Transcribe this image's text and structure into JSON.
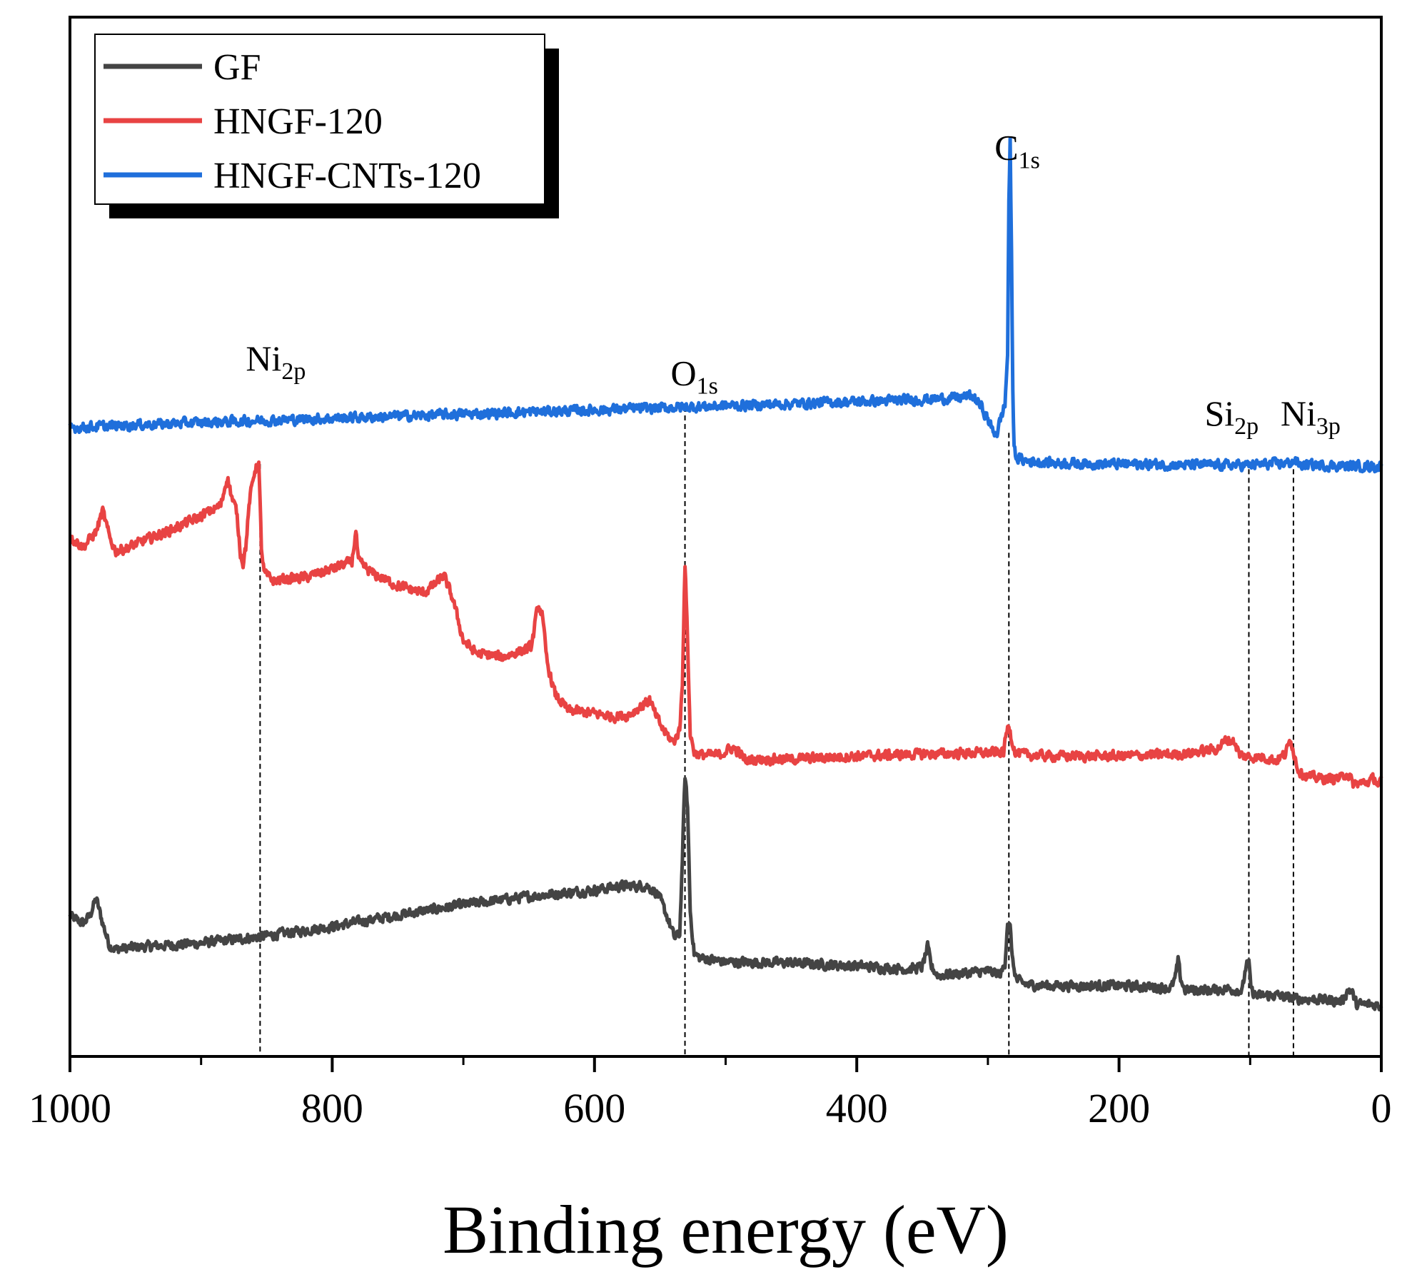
{
  "chart_data": {
    "type": "line",
    "title": "",
    "xlabel": "Binding energy (eV)",
    "ylabel": "",
    "xlim": [
      1000,
      0
    ],
    "x_reversed": true,
    "ylim": [
      0,
      100
    ],
    "y_ticks_shown": false,
    "grid": false,
    "legend": {
      "position": "top-left",
      "entries": [
        "GF",
        "HNGF-120",
        "HNGF-CNTs-120"
      ]
    },
    "x_ticks": [
      1000,
      800,
      600,
      400,
      200,
      0
    ],
    "x_tick_labels": [
      "1000",
      "800",
      "600",
      "400",
      "200",
      "0"
    ],
    "series": [
      {
        "name": "GF",
        "color": "#444444",
        "points": [
          [
            1000,
            13.5
          ],
          [
            990,
            12.8
          ],
          [
            985,
            13.5
          ],
          [
            980,
            15.2
          ],
          [
            975,
            12.8
          ],
          [
            970,
            10.7
          ],
          [
            965,
            10.3
          ],
          [
            950,
            10.5
          ],
          [
            900,
            10.9
          ],
          [
            850,
            11.6
          ],
          [
            800,
            12.5
          ],
          [
            750,
            13.6
          ],
          [
            700,
            14.6
          ],
          [
            650,
            15.4
          ],
          [
            600,
            16.0
          ],
          [
            580,
            16.4
          ],
          [
            560,
            16.4
          ],
          [
            552,
            15.7
          ],
          [
            545,
            13.6
          ],
          [
            539,
            11.4
          ],
          [
            535,
            11.8
          ],
          [
            533,
            19.0
          ],
          [
            531,
            27.0
          ],
          [
            529,
            24.0
          ],
          [
            527,
            14.0
          ],
          [
            524,
            9.9
          ],
          [
            520,
            9.5
          ],
          [
            500,
            9.1
          ],
          [
            450,
            9.0
          ],
          [
            400,
            8.7
          ],
          [
            360,
            8.4
          ],
          [
            350,
            8.6
          ],
          [
            346,
            10.5
          ],
          [
            343,
            8.6
          ],
          [
            338,
            7.8
          ],
          [
            320,
            8.0
          ],
          [
            300,
            8.2
          ],
          [
            290,
            7.9
          ],
          [
            287,
            9.0
          ],
          [
            285,
            13.0
          ],
          [
            283,
            12.3
          ],
          [
            281,
            9.0
          ],
          [
            278,
            7.3
          ],
          [
            270,
            6.9
          ],
          [
            250,
            6.8
          ],
          [
            200,
            6.8
          ],
          [
            160,
            6.6
          ],
          [
            157,
            7.6
          ],
          [
            155,
            9.2
          ],
          [
            153,
            7.5
          ],
          [
            150,
            6.4
          ],
          [
            130,
            6.4
          ],
          [
            115,
            6.5
          ],
          [
            106,
            6.3
          ],
          [
            103,
            8.9
          ],
          [
            101,
            8.8
          ],
          [
            99,
            6.3
          ],
          [
            95,
            5.8
          ],
          [
            80,
            5.9
          ],
          [
            70,
            5.6
          ],
          [
            50,
            5.5
          ],
          [
            30,
            5.3
          ],
          [
            25,
            6.5
          ],
          [
            22,
            6.1
          ],
          [
            19,
            5.0
          ],
          [
            10,
            5.0
          ],
          [
            0,
            4.9
          ]
        ]
      },
      {
        "name": "HNGF-120",
        "color": "#e84343",
        "points": [
          [
            1000,
            50.0
          ],
          [
            990,
            49.0
          ],
          [
            980,
            50.5
          ],
          [
            975,
            52.5
          ],
          [
            970,
            50.0
          ],
          [
            965,
            48.6
          ],
          [
            955,
            49.0
          ],
          [
            940,
            49.8
          ],
          [
            920,
            50.8
          ],
          [
            900,
            52.0
          ],
          [
            885,
            53.0
          ],
          [
            880,
            55.8
          ],
          [
            876,
            53.5
          ],
          [
            873,
            52.5
          ],
          [
            870,
            48.5
          ],
          [
            868,
            47.5
          ],
          [
            866,
            49.0
          ],
          [
            863,
            53.5
          ],
          [
            859,
            56.5
          ],
          [
            856,
            57.0
          ],
          [
            854,
            49.0
          ],
          [
            852,
            46.5
          ],
          [
            845,
            45.8
          ],
          [
            820,
            46.1
          ],
          [
            800,
            46.9
          ],
          [
            785,
            47.6
          ],
          [
            782,
            50.5
          ],
          [
            780,
            47.6
          ],
          [
            770,
            46.5
          ],
          [
            750,
            45.3
          ],
          [
            730,
            44.6
          ],
          [
            722,
            45.4
          ],
          [
            715,
            46.3
          ],
          [
            708,
            44.0
          ],
          [
            700,
            40.0
          ],
          [
            690,
            38.8
          ],
          [
            670,
            38.4
          ],
          [
            655,
            39.1
          ],
          [
            648,
            39.4
          ],
          [
            643,
            43.5
          ],
          [
            640,
            42.5
          ],
          [
            636,
            37.8
          ],
          [
            630,
            34.8
          ],
          [
            620,
            33.3
          ],
          [
            600,
            33.0
          ],
          [
            585,
            32.7
          ],
          [
            575,
            32.8
          ],
          [
            563,
            33.8
          ],
          [
            558,
            34.3
          ],
          [
            554,
            33.0
          ],
          [
            548,
            31.5
          ],
          [
            540,
            30.2
          ],
          [
            535,
            31.4
          ],
          [
            533,
            36.0
          ],
          [
            531,
            47.5
          ],
          [
            529,
            40.0
          ],
          [
            527,
            31.0
          ],
          [
            524,
            29.3
          ],
          [
            520,
            29.0
          ],
          [
            505,
            29.0
          ],
          [
            495,
            29.7
          ],
          [
            490,
            29.3
          ],
          [
            485,
            28.5
          ],
          [
            470,
            28.6
          ],
          [
            450,
            28.6
          ],
          [
            400,
            28.9
          ],
          [
            350,
            29.1
          ],
          [
            300,
            29.2
          ],
          [
            288,
            29.3
          ],
          [
            286,
            31.0
          ],
          [
            284,
            32.0
          ],
          [
            282,
            30.6
          ],
          [
            279,
            29.2
          ],
          [
            270,
            29.0
          ],
          [
            250,
            28.9
          ],
          [
            200,
            28.9
          ],
          [
            150,
            29.1
          ],
          [
            125,
            29.6
          ],
          [
            118,
            30.5
          ],
          [
            112,
            30.3
          ],
          [
            108,
            29.0
          ],
          [
            100,
            28.8
          ],
          [
            90,
            28.8
          ],
          [
            80,
            28.5
          ],
          [
            73,
            29.1
          ],
          [
            69,
            30.6
          ],
          [
            66,
            28.8
          ],
          [
            63,
            27.5
          ],
          [
            60,
            27.2
          ],
          [
            55,
            26.9
          ],
          [
            40,
            26.7
          ],
          [
            30,
            26.8
          ],
          [
            27,
            27.3
          ],
          [
            24,
            26.9
          ],
          [
            22,
            26.2
          ],
          [
            10,
            26.4
          ],
          [
            5,
            26.8
          ],
          [
            2,
            26.0
          ],
          [
            0,
            26.5
          ]
        ]
      },
      {
        "name": "HNGF-CNTs-120",
        "color": "#1f6fdb",
        "points": [
          [
            1000,
            60.5
          ],
          [
            960,
            60.7
          ],
          [
            900,
            61.0
          ],
          [
            850,
            61.2
          ],
          [
            800,
            61.4
          ],
          [
            750,
            61.6
          ],
          [
            700,
            61.8
          ],
          [
            650,
            62.0
          ],
          [
            600,
            62.2
          ],
          [
            550,
            62.4
          ],
          [
            500,
            62.6
          ],
          [
            450,
            62.8
          ],
          [
            400,
            63.0
          ],
          [
            350,
            63.2
          ],
          [
            320,
            63.4
          ],
          [
            315,
            63.6
          ],
          [
            310,
            63.3
          ],
          [
            305,
            62.5
          ],
          [
            300,
            61.3
          ],
          [
            296,
            60.1
          ],
          [
            293,
            60.0
          ],
          [
            290,
            61.5
          ],
          [
            287,
            62.7
          ],
          [
            285,
            67.5
          ],
          [
            284,
            82.5
          ],
          [
            283,
            88.0
          ],
          [
            282,
            77.0
          ],
          [
            281,
            64.0
          ],
          [
            280,
            58.5
          ],
          [
            278,
            57.6
          ],
          [
            274,
            57.4
          ],
          [
            270,
            57.3
          ],
          [
            250,
            57.1
          ],
          [
            200,
            57.0
          ],
          [
            150,
            56.9
          ],
          [
            100,
            56.9
          ],
          [
            70,
            57.1
          ],
          [
            66,
            57.3
          ],
          [
            62,
            56.9
          ],
          [
            50,
            56.9
          ],
          [
            20,
            56.8
          ],
          [
            10,
            56.8
          ],
          [
            5,
            56.7
          ],
          [
            0,
            56.8
          ]
        ]
      }
    ],
    "annotations": [
      {
        "base": "Ni",
        "sub": "2p",
        "x": 855
      },
      {
        "base": "O",
        "sub": "1s",
        "x": 531
      },
      {
        "base": "C",
        "sub": "1s",
        "x": 284
      },
      {
        "base": "Si",
        "sub": "2p",
        "x": 101
      },
      {
        "base": "Ni",
        "sub": "3p",
        "x": 67
      }
    ]
  }
}
